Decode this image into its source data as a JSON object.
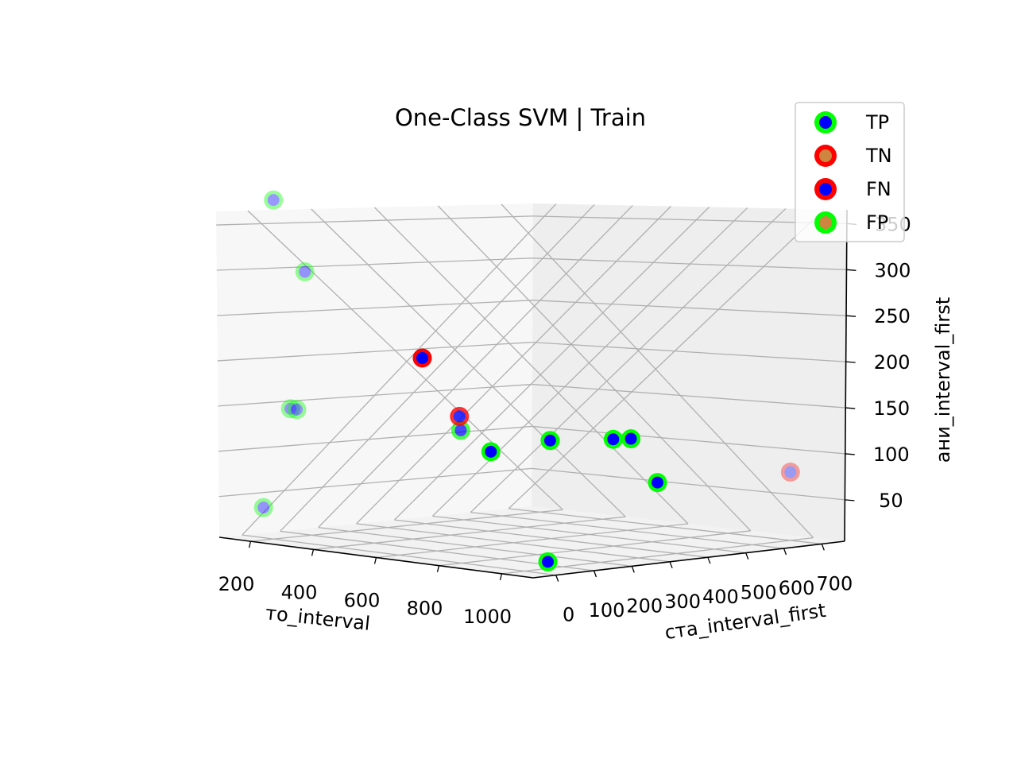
{
  "chart_data": {
    "type": "scatter",
    "projection": "3d",
    "title": "One-Class SVM | Train",
    "xlabel": "то_interval",
    "ylabel": "ста_interval_first",
    "zlabel": "ани_interval_first",
    "x_ticks": [
      "200",
      "400",
      "600",
      "800",
      "1000"
    ],
    "y_ticks": [
      "0",
      "100",
      "200",
      "300",
      "400",
      "500",
      "600",
      "700"
    ],
    "z_ticks": [
      "50",
      "100",
      "150",
      "200",
      "250",
      "300",
      "350"
    ],
    "grid": true,
    "legend_position": "top-right",
    "legend": [
      {
        "label": "TP",
        "edge_color": "#00ff00",
        "face_color": "#0000ff"
      },
      {
        "label": "TN",
        "edge_color": "#ff0000",
        "face_color": "#cd853f"
      },
      {
        "label": "FN",
        "edge_color": "#ff0000",
        "face_color": "#0000ff"
      },
      {
        "label": "FP",
        "edge_color": "#00ff00",
        "face_color": "#cd853f"
      }
    ],
    "series": [
      {
        "name": "TP",
        "edge_color": "#00ff00",
        "face_color": "#0000ff",
        "points": [
          {
            "x": 200,
            "y": 0,
            "z": 330,
            "depth_alpha": 0.4
          },
          {
            "x": 300,
            "y": 0,
            "z": 265,
            "depth_alpha": 0.4
          },
          {
            "x": 230,
            "y": 20,
            "z": 130,
            "depth_alpha": 0.4
          },
          {
            "x": 250,
            "y": 20,
            "z": 130,
            "depth_alpha": 0.4
          },
          {
            "x": 120,
            "y": 40,
            "z": 30,
            "depth_alpha": 0.4
          },
          {
            "x": 700,
            "y": 80,
            "z": 125,
            "depth_alpha": 0.7
          },
          {
            "x": 820,
            "y": 60,
            "z": 110,
            "depth_alpha": 1.0
          },
          {
            "x": 900,
            "y": 150,
            "z": 120,
            "depth_alpha": 1.0
          },
          {
            "x": 980,
            "y": 250,
            "z": 120,
            "depth_alpha": 1.0
          },
          {
            "x": 1000,
            "y": 280,
            "z": 120,
            "depth_alpha": 1.0
          },
          {
            "x": 1000,
            "y": 350,
            "z": 75,
            "depth_alpha": 1.0
          },
          {
            "x": 1050,
            "y": 20,
            "z": 15,
            "depth_alpha": 1.0
          }
        ]
      },
      {
        "name": "FN",
        "edge_color": "#ff0000",
        "face_color": "#0000ff",
        "points": [
          {
            "x": 650,
            "y": 20,
            "z": 195,
            "depth_alpha": 1.0
          },
          {
            "x": 720,
            "y": 60,
            "z": 140,
            "depth_alpha": 0.8
          },
          {
            "x": 1000,
            "y": 700,
            "z": 70,
            "depth_alpha": 0.35
          }
        ]
      }
    ]
  }
}
